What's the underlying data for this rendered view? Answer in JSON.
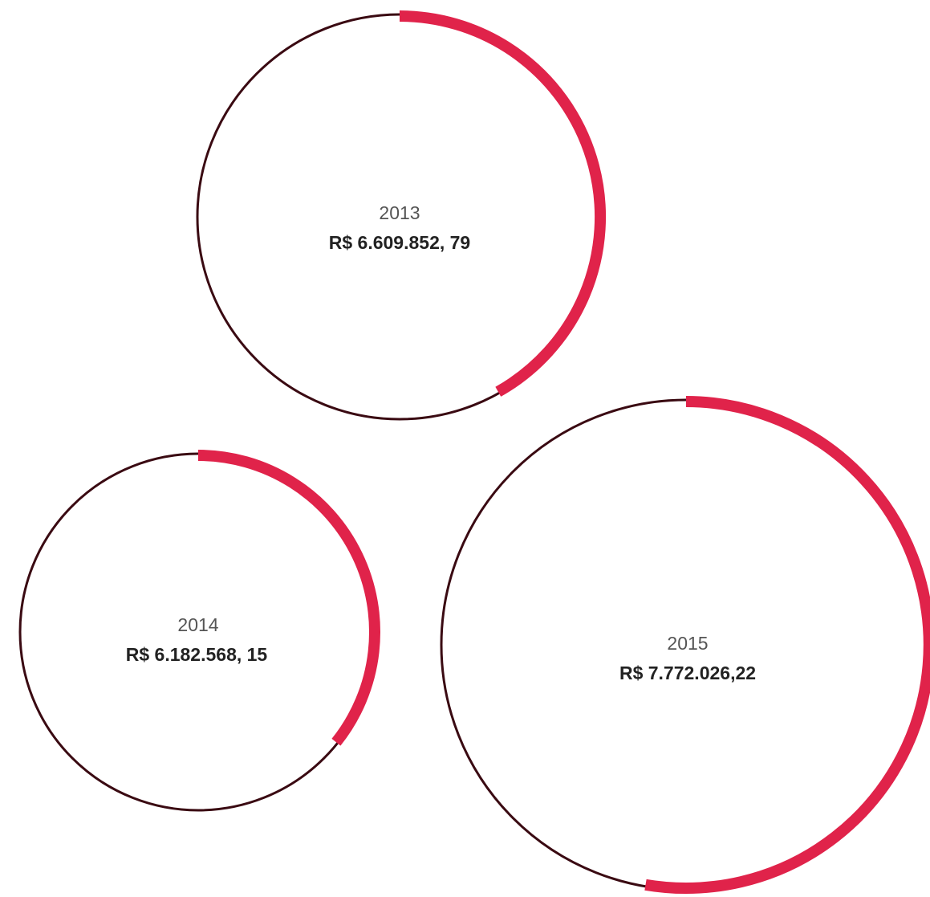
{
  "items": [
    {
      "year": "2013",
      "amount": "R$ 6.609.852, 79"
    },
    {
      "year": "2014",
      "amount": "R$ 6.182.568, 15"
    },
    {
      "year": "2015",
      "amount": "R$ 7.772.026,22"
    }
  ]
}
